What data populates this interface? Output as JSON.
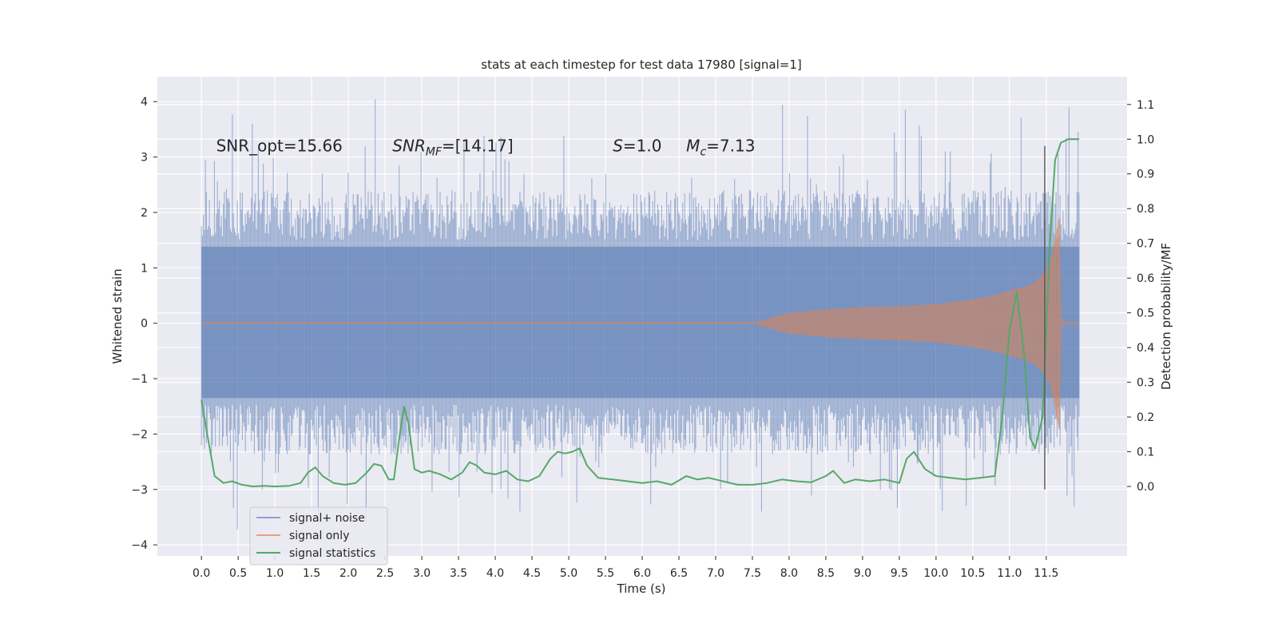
{
  "chart_data": {
    "type": "line",
    "title": "stats at each timestep for test data 17980 [signal=1]",
    "xlabel": "Time (s)",
    "ylabel": "Whitened strain",
    "y2label": "Detection probability/MF",
    "xlim": [
      -0.6,
      12.6
    ],
    "ylim": [
      -4.2,
      4.45
    ],
    "y2lim": [
      -0.2,
      1.18
    ],
    "x_ticks": [
      "0.0",
      "0.5",
      "1.0",
      "1.5",
      "2.0",
      "2.5",
      "3.0",
      "3.5",
      "4.0",
      "4.5",
      "5.0",
      "5.5",
      "6.0",
      "6.5",
      "7.0",
      "7.5",
      "8.0",
      "8.5",
      "9.0",
      "9.5",
      "10.0",
      "10.5",
      "11.0",
      "11.5"
    ],
    "y_ticks": [
      "4",
      "3",
      "2",
      "1",
      "0",
      "−1",
      "−2",
      "−3",
      "−4"
    ],
    "y2_ticks": [
      "1.1",
      "1.0",
      "0.9",
      "0.8",
      "0.7",
      "0.6",
      "0.5",
      "0.4",
      "0.3",
      "0.2",
      "0.1",
      "0.0"
    ],
    "grid": true,
    "legend_position": "lower-left",
    "annotations": [
      {
        "text": "SNR_opt=15.66",
        "x": 0.2,
        "y": 3.2
      },
      {
        "text": "SNR_MF=[14.17]",
        "x": 2.6,
        "y": 3.2
      },
      {
        "text": "S=1.0",
        "x": 5.6,
        "y": 3.2
      },
      {
        "text": "M_c=7.13",
        "x": 6.6,
        "y": 3.2
      }
    ],
    "vline": {
      "x": 11.48,
      "y_range": [
        -3.0,
        3.2
      ]
    },
    "series": [
      {
        "name": "signal+ noise",
        "color": "#4c72b0",
        "alpha": 0.5,
        "style": "noise-band",
        "x_range": [
          0.0,
          11.95
        ],
        "core_min": -1.35,
        "core_max": 1.38,
        "extreme_min": -3.85,
        "extreme_max": 4.1
      },
      {
        "name": "signal only",
        "color": "#dd8452",
        "alpha": 0.55,
        "envelope": {
          "x": [
            7.5,
            8.0,
            8.5,
            9.0,
            9.5,
            10.0,
            10.5,
            10.8,
            11.0,
            11.2,
            11.3,
            11.4,
            11.5,
            11.55,
            11.6,
            11.65,
            11.68,
            11.7,
            11.75
          ],
          "amp": [
            0.0,
            0.18,
            0.24,
            0.28,
            0.3,
            0.34,
            0.42,
            0.5,
            0.58,
            0.65,
            0.7,
            0.8,
            0.95,
            1.1,
            1.35,
            1.7,
            1.9,
            0.1,
            0.0
          ]
        }
      },
      {
        "name": "signal statistics",
        "color": "#55a868",
        "x": [
          0.0,
          0.08,
          0.18,
          0.3,
          0.42,
          0.55,
          0.7,
          0.85,
          1.0,
          1.2,
          1.35,
          1.45,
          1.55,
          1.65,
          1.8,
          1.95,
          2.1,
          2.25,
          2.35,
          2.45,
          2.55,
          2.62,
          2.7,
          2.76,
          2.82,
          2.9,
          3.0,
          3.1,
          3.25,
          3.4,
          3.55,
          3.65,
          3.75,
          3.85,
          4.0,
          4.15,
          4.3,
          4.45,
          4.6,
          4.75,
          4.85,
          4.95,
          5.05,
          5.15,
          5.25,
          5.4,
          5.6,
          5.8,
          6.0,
          6.2,
          6.4,
          6.6,
          6.75,
          6.9,
          7.0,
          7.1,
          7.3,
          7.5,
          7.7,
          7.9,
          8.1,
          8.3,
          8.5,
          8.6,
          8.75,
          8.9,
          9.1,
          9.3,
          9.5,
          9.6,
          9.7,
          9.85,
          10.0,
          10.2,
          10.4,
          10.6,
          10.8,
          10.9,
          11.0,
          11.1,
          11.2,
          11.28,
          11.35,
          11.45,
          11.55,
          11.62,
          11.7,
          11.8,
          11.95
        ],
        "y": [
          0.25,
          0.15,
          0.03,
          0.01,
          0.015,
          0.005,
          0.0,
          0.002,
          0.0,
          0.002,
          0.01,
          0.04,
          0.055,
          0.03,
          0.01,
          0.005,
          0.01,
          0.04,
          0.065,
          0.06,
          0.02,
          0.02,
          0.15,
          0.23,
          0.18,
          0.05,
          0.04,
          0.045,
          0.035,
          0.02,
          0.04,
          0.07,
          0.06,
          0.04,
          0.035,
          0.045,
          0.02,
          0.015,
          0.03,
          0.08,
          0.1,
          0.095,
          0.1,
          0.11,
          0.06,
          0.025,
          0.02,
          0.015,
          0.01,
          0.015,
          0.005,
          0.03,
          0.02,
          0.025,
          0.02,
          0.015,
          0.005,
          0.005,
          0.01,
          0.02,
          0.015,
          0.012,
          0.03,
          0.045,
          0.01,
          0.02,
          0.015,
          0.02,
          0.01,
          0.08,
          0.1,
          0.05,
          0.03,
          0.025,
          0.02,
          0.025,
          0.03,
          0.2,
          0.45,
          0.56,
          0.38,
          0.14,
          0.11,
          0.2,
          0.7,
          0.94,
          0.99,
          1.0,
          1.0
        ]
      }
    ]
  }
}
